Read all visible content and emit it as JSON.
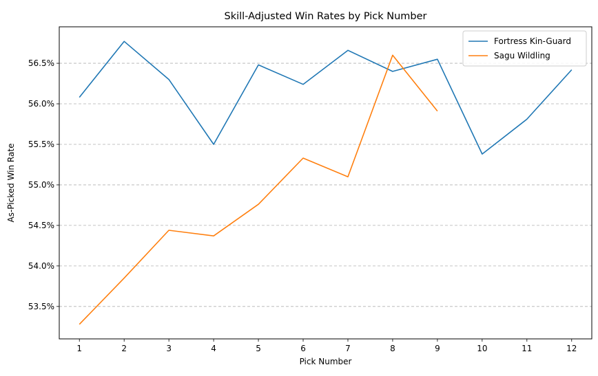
{
  "chart_data": {
    "type": "line",
    "title": "Skill-Adjusted Win Rates by Pick Number",
    "xlabel": "Pick Number",
    "ylabel": "As-Picked Win Rate",
    "x": [
      1,
      2,
      3,
      4,
      5,
      6,
      7,
      8,
      9,
      10,
      11,
      12
    ],
    "xlim": [
      0.55,
      12.45
    ],
    "ylim": [
      53.1,
      56.95
    ],
    "yticks": [
      53.5,
      54.0,
      54.5,
      55.0,
      55.5,
      56.0,
      56.5
    ],
    "ytick_labels": [
      "53.5%",
      "54.0%",
      "54.5%",
      "55.0%",
      "55.5%",
      "56.0%",
      "56.5%"
    ],
    "grid": "horizontal dashed",
    "legend_position": "top-right",
    "series": [
      {
        "name": "Fortress Kin-Guard",
        "color": "#1f77b4",
        "x": [
          1,
          2,
          3,
          4,
          5,
          6,
          7,
          8,
          9,
          10,
          11,
          12
        ],
        "values": [
          56.08,
          56.77,
          56.3,
          55.5,
          56.48,
          56.24,
          56.66,
          56.4,
          56.55,
          55.38,
          55.81,
          56.42
        ]
      },
      {
        "name": "Sagu Wildling",
        "color": "#ff7f0e",
        "x": [
          1,
          2,
          3,
          4,
          5,
          6,
          7,
          8,
          9
        ],
        "values": [
          53.28,
          53.85,
          54.44,
          54.37,
          54.76,
          55.33,
          55.1,
          56.6,
          55.91
        ]
      }
    ]
  }
}
